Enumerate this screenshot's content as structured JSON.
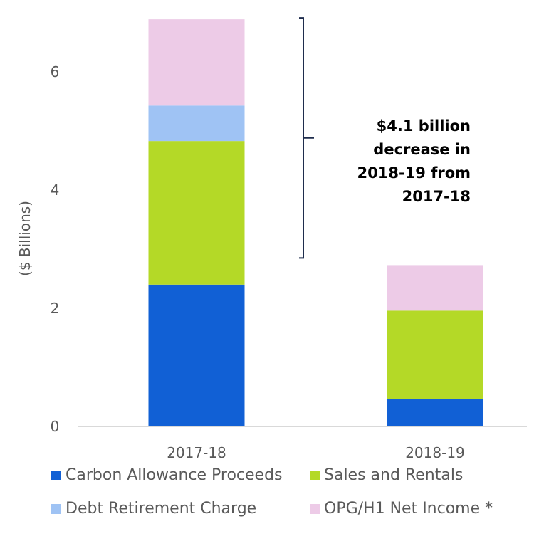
{
  "chart_data": {
    "type": "bar",
    "stacked": true,
    "title": "",
    "xlabel": "",
    "ylabel": "($ Billions)",
    "ylim": [
      0,
      7
    ],
    "yticks": [
      0,
      2,
      4,
      6
    ],
    "grid": false,
    "categories": [
      "2017-18",
      "2018-19"
    ],
    "series": [
      {
        "name": "Carbon Allowance Proceeds",
        "color": "#1160D5",
        "values": [
          2.4,
          0.47
        ]
      },
      {
        "name": "Sales and Rentals",
        "color": "#B4D927",
        "values": [
          2.43,
          1.49
        ]
      },
      {
        "name": "Debt Retirement Charge",
        "color": "#9FC3F4",
        "values": [
          0.6,
          0.0
        ]
      },
      {
        "name": "OPG/H1 Net Income *",
        "color": "#EDCBE7",
        "values": [
          1.46,
          0.77
        ]
      }
    ],
    "annotation": {
      "lines": [
        "$4.1 billion",
        "decrease in",
        "2018-19 from",
        "2017-18"
      ],
      "from_value": 6.89,
      "to_value": 2.73
    },
    "legend_position": "bottom"
  }
}
